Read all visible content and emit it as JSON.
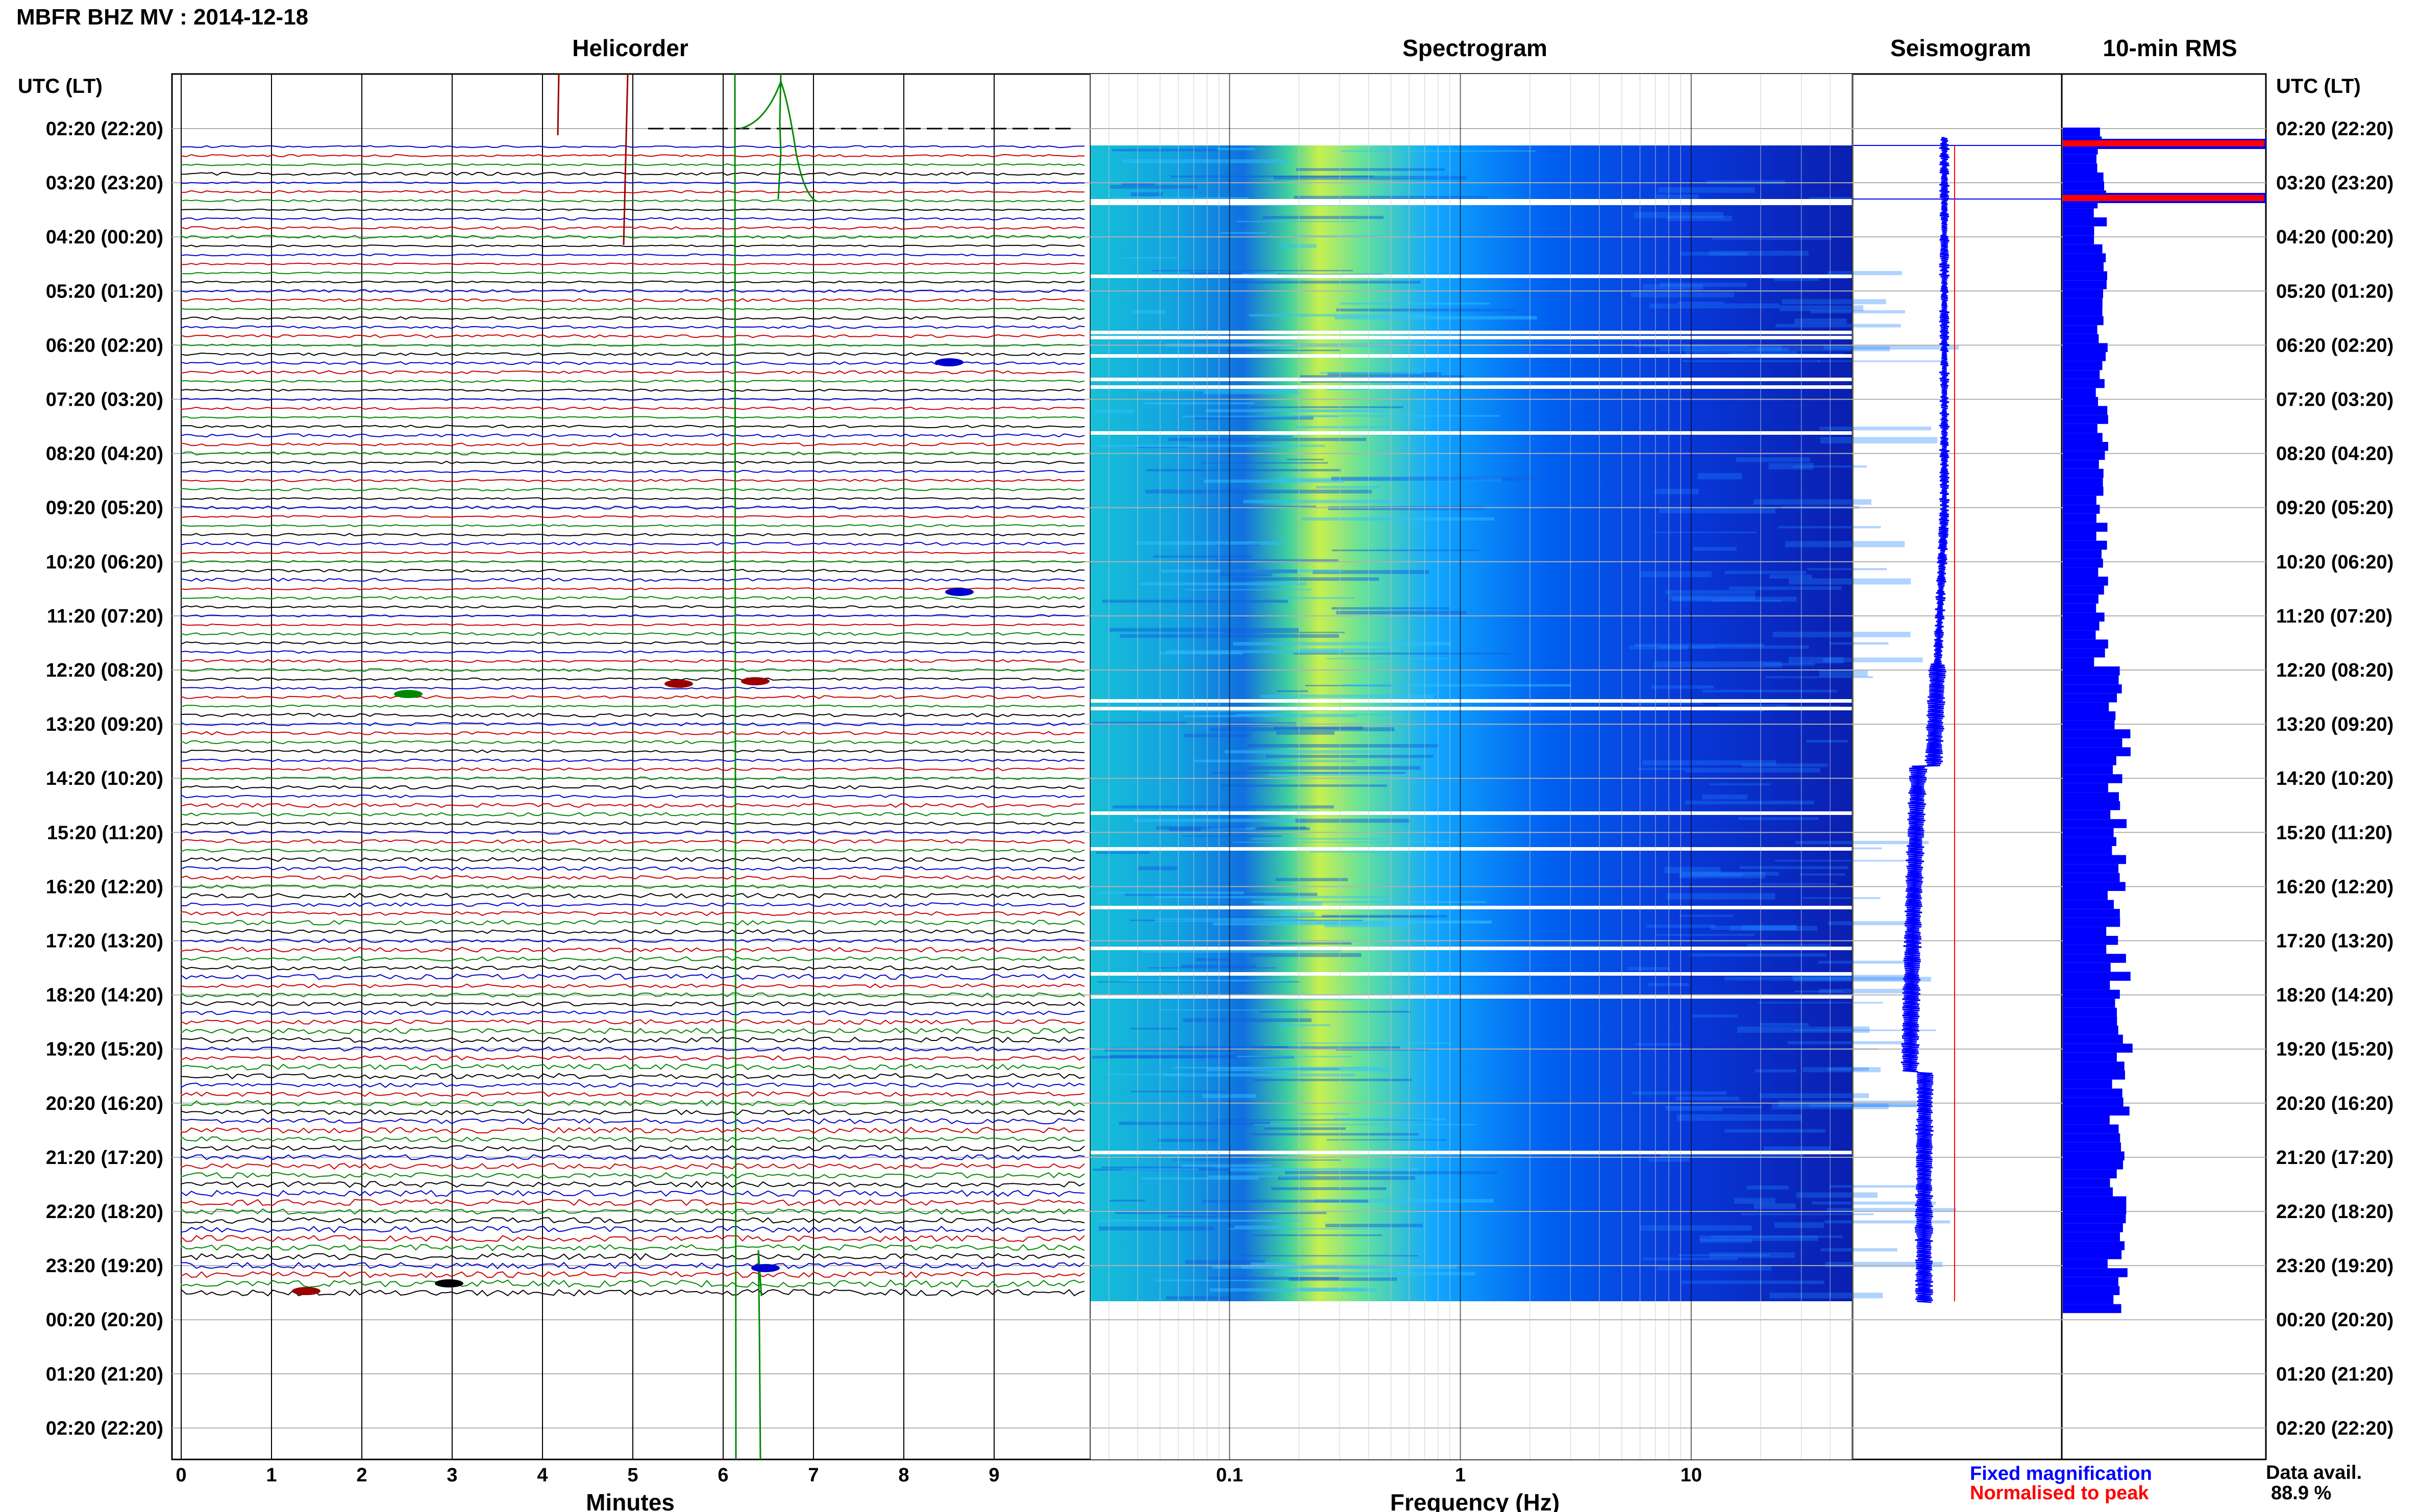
{
  "chart_data": [
    {
      "type": "helicorder",
      "header": "MBFR BHZ MV : 2014-12-18",
      "title": "Helicorder",
      "xlabel": "Minutes",
      "x_ticks": [
        "0",
        "1",
        "2",
        "3",
        "4",
        "5",
        "6",
        "7",
        "8",
        "9"
      ],
      "xlim": [
        0,
        10
      ],
      "y_axis_label": "UTC (LT)",
      "y_ticks": [
        "02:20 (22:20)",
        "03:20 (23:20)",
        "04:20 (00:20)",
        "05:20 (01:20)",
        "06:20 (02:20)",
        "07:20 (03:20)",
        "08:20 (04:20)",
        "09:20 (05:20)",
        "10:20 (06:20)",
        "11:20 (07:20)",
        "12:20 (08:20)",
        "13:20 (09:20)",
        "14:20 (10:20)",
        "15:20 (11:20)",
        "16:20 (12:20)",
        "17:20 (13:20)",
        "18:20 (14:20)",
        "19:20 (15:20)",
        "20:20 (16:20)",
        "21:20 (17:20)",
        "22:20 (18:20)",
        "23:20 (19:20)",
        "00:20 (20:20)",
        "01:20 (21:20)",
        "02:20 (22:20)"
      ],
      "trace_colors": [
        "#0000cc",
        "#cc0000",
        "#008800",
        "#000000"
      ],
      "traces_per_hour": 6
    },
    {
      "type": "heatmap",
      "title": "Spectrogram",
      "xlabel": "Frequency (Hz)",
      "x_scale": "log",
      "xlim": [
        0.025,
        50
      ],
      "x_ticks": [
        "0.1",
        "1",
        "10"
      ],
      "colormap": [
        "#0a1fc8",
        "#0050ff",
        "#00a0ff",
        "#20d0d0",
        "#80ff80",
        "#e8f040"
      ]
    },
    {
      "type": "line",
      "title": "Seismogram",
      "legend": [
        {
          "label": "Fixed magnification",
          "color": "#0000ff"
        },
        {
          "label": "Normalised to peak",
          "color": "#ff0000"
        }
      ]
    },
    {
      "type": "bar",
      "title": "10-min RMS",
      "right_axis_label": "UTC (LT)",
      "data_avail_label": "Data avail.",
      "data_avail_value": "88.9 %",
      "bar_color": "#0000ff",
      "peak_color": "#ff0000"
    }
  ]
}
